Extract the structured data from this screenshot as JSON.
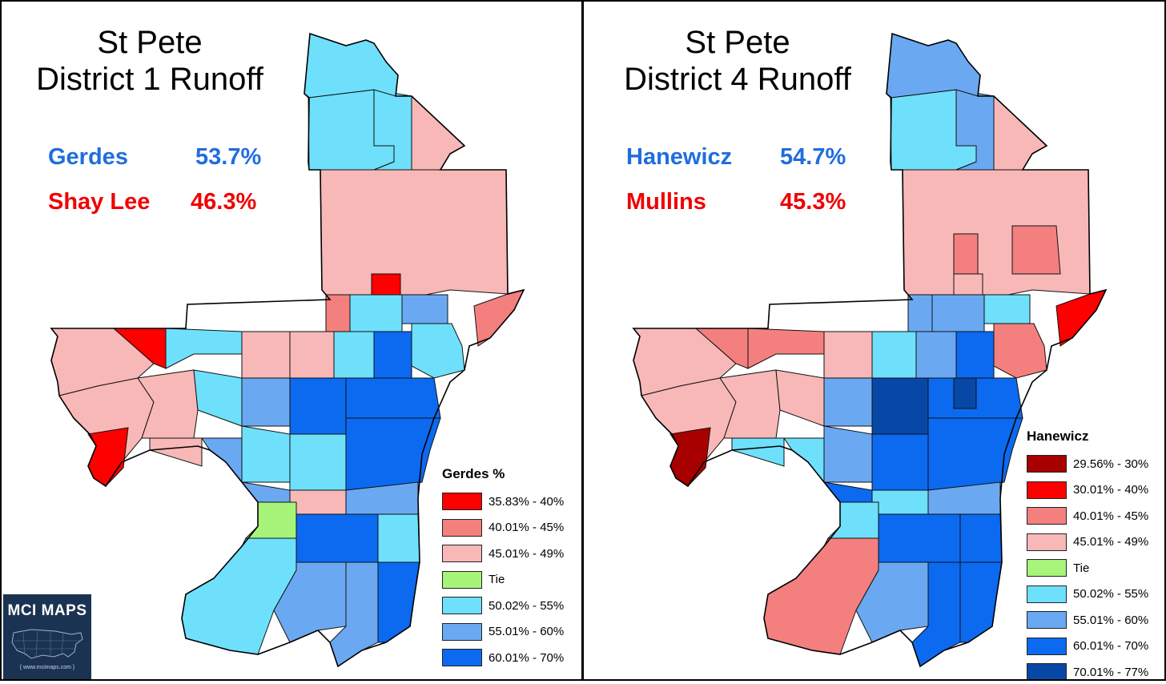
{
  "colors": {
    "r1": "#e80000",
    "r2": "#ff0000",
    "r3": "#f47f7f",
    "r4": "#f8b8b8",
    "tie": "#a6f57a",
    "b1": "#6ee0fb",
    "b2": "#6aa9f2",
    "b3": "#0b6af0",
    "b4": "#0748a6",
    "dark_red": "#a80000"
  },
  "left": {
    "title_line1": "St Pete",
    "title_line2": "District 1 Runoff",
    "candidates": [
      {
        "name": "Gerdes",
        "pct": "53.7%",
        "color": "#1f6ddf"
      },
      {
        "name": "Shay Lee",
        "pct": "46.3%",
        "color": "#f00000"
      }
    ],
    "legend": {
      "title": "Gerdes %",
      "items": [
        {
          "label": "35.83% - 40%",
          "color": "#ff0000"
        },
        {
          "label": "40.01% - 45%",
          "color": "#f47f7f"
        },
        {
          "label": "45.01% - 49%",
          "color": "#f8b8b8"
        },
        {
          "label": "Tie",
          "color": "#a6f57a"
        },
        {
          "label": "50.02% - 55%",
          "color": "#6ee0fb"
        },
        {
          "label": "55.01% - 60%",
          "color": "#6aa9f2"
        },
        {
          "label": "60.01% - 70%",
          "color": "#0b6af0"
        }
      ]
    }
  },
  "right": {
    "title_line1": "St Pete",
    "title_line2": "District 4 Runoff",
    "candidates": [
      {
        "name": "Hanewicz",
        "pct": "54.7%",
        "color": "#1f6ddf"
      },
      {
        "name": "Mullins",
        "pct": "45.3%",
        "color": "#f00000"
      }
    ],
    "legend": {
      "title": "Hanewicz",
      "items": [
        {
          "label": "29.56% - 30%",
          "color": "#a80000"
        },
        {
          "label": "30.01% - 40%",
          "color": "#ff0000"
        },
        {
          "label": "40.01% - 45%",
          "color": "#f47f7f"
        },
        {
          "label": "45.01% - 49%",
          "color": "#f8b8b8"
        },
        {
          "label": "Tie",
          "color": "#a6f57a"
        },
        {
          "label": "50.02% - 55%",
          "color": "#6ee0fb"
        },
        {
          "label": "55.01% - 60%",
          "color": "#6aa9f2"
        },
        {
          "label": "60.01% - 70%",
          "color": "#0b6af0"
        },
        {
          "label": "70.01% - 77%",
          "color": "#0748a6"
        }
      ]
    }
  },
  "logo": {
    "text": "MCI MAPS",
    "url": "{ www.mcimaps.com }"
  }
}
